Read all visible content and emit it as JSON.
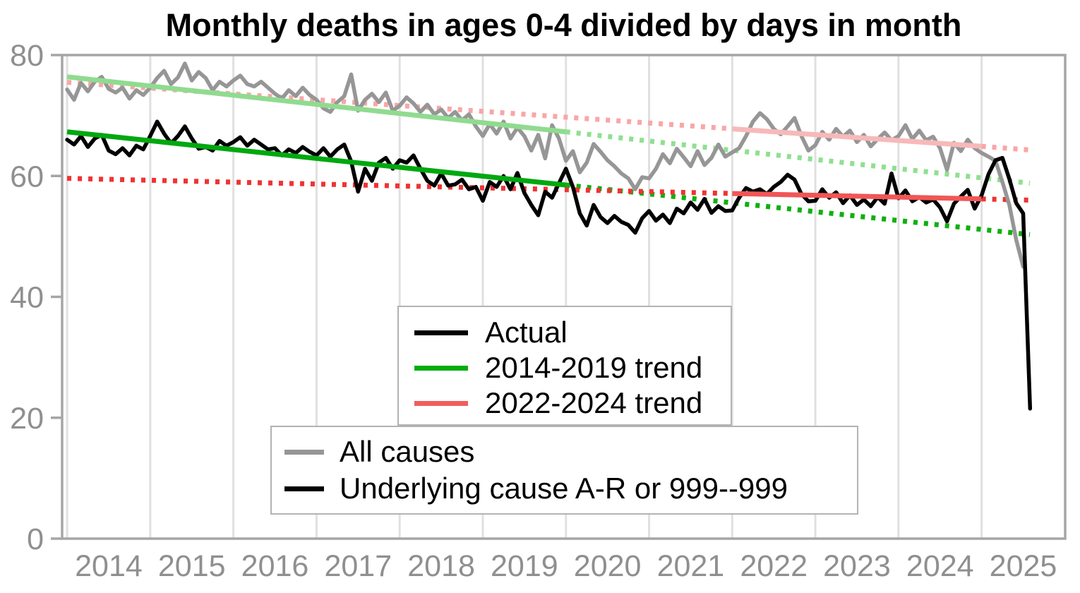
{
  "chart_data": {
    "type": "line",
    "title": "Monthly deaths in ages 0-4 divided by days in month",
    "x_axis": {
      "xlim": [
        2013.94,
        2026.005
      ],
      "ticks": [
        {
          "label": "2014",
          "year": 2014
        },
        {
          "label": "2015",
          "year": 2015
        },
        {
          "label": "2016",
          "year": 2016
        },
        {
          "label": "2017",
          "year": 2017
        },
        {
          "label": "2018",
          "year": 2018
        },
        {
          "label": "2019",
          "year": 2019
        },
        {
          "label": "2020",
          "year": 2020
        },
        {
          "label": "2021",
          "year": 2021
        },
        {
          "label": "2022",
          "year": 2022
        },
        {
          "label": "2023",
          "year": 2023
        },
        {
          "label": "2024",
          "year": 2024
        },
        {
          "label": "2025",
          "year": 2025
        }
      ],
      "gridlines": "vertical"
    },
    "y_axis": {
      "ylim": [
        0,
        80
      ],
      "ticks": [
        {
          "label": "0",
          "value": 0
        },
        {
          "label": "20",
          "value": 20
        },
        {
          "label": "40",
          "value": 40
        },
        {
          "label": "60",
          "value": 60
        },
        {
          "label": "80",
          "value": 80
        }
      ]
    },
    "style": {
      "axis_color": "#a6a6a6",
      "grid_color": "#e0e0e0",
      "tick_label_color": "#8f8f8f",
      "tick_label_size": 43
    },
    "series": [
      {
        "id": "trend-all-2014-2019-extrapolation",
        "name": "2014-2019 trend (All causes, extrapolated)",
        "width": 7,
        "segments": [
          {
            "style": "dotted",
            "color": "#8fe08f",
            "x1": 2020.0,
            "y1": 67.3,
            "x2": 2025.58,
            "y2": 58.8
          }
        ]
      },
      {
        "id": "trend-underlying-2014-2019-extrapolation",
        "name": "2014-2019 trend (Underlying, extrapolated)",
        "width": 7,
        "segments": [
          {
            "style": "dotted",
            "color": "#0eb00e",
            "x1": 2020.0,
            "y1": 58.5,
            "x2": 2025.58,
            "y2": 50.3
          }
        ]
      },
      {
        "id": "trend-all-2022-2024-extrapolation",
        "name": "2022-2024 trend (All causes, extrapolated)",
        "width": 7,
        "segments": [
          {
            "style": "dotted",
            "color": "#f9a6a6",
            "x1": 2014.0,
            "y1": 75.5,
            "x2": 2022.0,
            "y2": 67.8
          },
          {
            "style": "dotted",
            "color": "#f9a6a6",
            "x1": 2025.0,
            "y1": 64.9,
            "x2": 2025.58,
            "y2": 64.3
          }
        ]
      },
      {
        "id": "trend-underlying-2022-2024-extrapolation",
        "name": "2022-2024 trend (Underlying, extrapolated)",
        "width": 7,
        "segments": [
          {
            "style": "dotted",
            "color": "#ef3333",
            "x1": 2014.0,
            "y1": 59.6,
            "x2": 2022.0,
            "y2": 57.1
          },
          {
            "style": "dotted",
            "color": "#ef3333",
            "x1": 2025.0,
            "y1": 56.2,
            "x2": 2025.58,
            "y2": 56.0
          }
        ]
      },
      {
        "id": "all-causes",
        "name": "All causes",
        "color": "#969696",
        "width": 5.5,
        "start": "2014-01",
        "monthly": true,
        "values": [
          74.3,
          72.6,
          75.4,
          74.0,
          75.6,
          76.4,
          74.4,
          73.8,
          74.6,
          72.8,
          74.2,
          73.4,
          74.6,
          76.2,
          77.4,
          75.2,
          76.3,
          78.6,
          75.8,
          77.2,
          76.2,
          74.2,
          75.6,
          74.8,
          75.8,
          76.6,
          75.2,
          74.8,
          75.6,
          74.6,
          73.6,
          72.8,
          74.2,
          73.2,
          74.6,
          73.4,
          72.6,
          71.2,
          70.6,
          72.2,
          73.2,
          76.8,
          70.8,
          72.6,
          73.6,
          72.2,
          73.8,
          70.8,
          71.6,
          73.0,
          72.0,
          70.6,
          71.8,
          70.2,
          71.0,
          69.6,
          70.6,
          69.2,
          70.2,
          68.2,
          66.6,
          68.6,
          67.0,
          69.0,
          66.2,
          68.0,
          66.6,
          64.2,
          66.8,
          62.9,
          68.4,
          66.2,
          62.5,
          64.1,
          60.6,
          62.2,
          65.3,
          64.0,
          62.6,
          61.6,
          60.4,
          59.6,
          57.8,
          59.8,
          59.6,
          61.2,
          63.6,
          62.1,
          64.5,
          63.1,
          61.6,
          64.1,
          61.8,
          63.0,
          65.2,
          63.2,
          63.9,
          64.6,
          66.6,
          69.0,
          70.4,
          69.4,
          67.8,
          66.9,
          68.2,
          69.6,
          66.6,
          64.2,
          65.1,
          67.3,
          66.0,
          67.8,
          66.5,
          67.5,
          65.6,
          66.8,
          64.9,
          66.1,
          67.2,
          65.9,
          66.6,
          68.4,
          66.1,
          67.5,
          65.9,
          66.5,
          64.6,
          61.0,
          65.5,
          64.1,
          66.0,
          64.6,
          63.8,
          63.2,
          62.5,
          59.0,
          55.2,
          49.4,
          45.0
        ]
      },
      {
        "id": "trend-all-2014-2019",
        "name": "2014-2019 trend (All causes)",
        "width": 7,
        "segments": [
          {
            "style": "solid",
            "color": "#90db90",
            "x1": 2014.0,
            "y1": 76.4,
            "x2": 2020.0,
            "y2": 67.3
          }
        ]
      },
      {
        "id": "trend-all-2022-2024",
        "name": "2022-2024 trend (All causes)",
        "width": 7,
        "segments": [
          {
            "style": "solid",
            "color": "#f7b9b9",
            "x1": 2022.0,
            "y1": 67.8,
            "x2": 2025.0,
            "y2": 64.9
          }
        ]
      },
      {
        "id": "underlying",
        "name": "Underlying cause A-R or 999--999",
        "color": "#000000",
        "width": 5.5,
        "start": "2014-01",
        "monthly": true,
        "values": [
          66.0,
          65.2,
          66.6,
          64.8,
          66.2,
          66.8,
          64.2,
          63.6,
          64.6,
          63.4,
          65.0,
          64.4,
          66.6,
          69.0,
          67.0,
          65.4,
          66.6,
          68.2,
          66.2,
          64.5,
          64.8,
          64.2,
          65.8,
          65.0,
          65.6,
          66.4,
          65.0,
          66.0,
          65.2,
          64.4,
          64.6,
          63.4,
          64.4,
          63.8,
          64.8,
          64.0,
          63.4,
          64.6,
          63.2,
          64.4,
          65.2,
          62.4,
          57.4,
          61.2,
          59.2,
          62.2,
          63.0,
          61.2,
          62.6,
          62.2,
          63.4,
          61.2,
          59.2,
          58.4,
          60.4,
          58.4,
          58.6,
          59.4,
          57.8,
          58.2,
          55.9,
          59.0,
          58.2,
          60.0,
          57.8,
          60.5,
          57.2,
          55.2,
          53.5,
          57.4,
          56.4,
          58.8,
          61.2,
          58.2,
          53.8,
          51.8,
          55.2,
          53.2,
          52.2,
          53.4,
          52.4,
          51.9,
          50.6,
          53.0,
          54.2,
          52.6,
          53.6,
          52.2,
          54.6,
          53.8,
          55.6,
          54.4,
          56.2,
          53.9,
          55.0,
          54.2,
          54.3,
          56.4,
          58.0,
          57.4,
          57.8,
          57.0,
          58.2,
          59.0,
          60.2,
          59.4,
          57.0,
          55.8,
          55.9,
          57.8,
          56.4,
          57.3,
          55.5,
          56.8,
          55.2,
          56.1,
          55.0,
          56.5,
          55.4,
          60.4,
          56.3,
          57.6,
          55.8,
          56.5,
          55.6,
          56.1,
          54.8,
          52.5,
          55.4,
          56.6,
          57.7,
          54.6,
          56.8,
          60.3,
          62.6,
          63.0,
          59.5,
          55.5,
          53.8,
          21.5
        ]
      },
      {
        "id": "trend-underlying-2014-2019",
        "name": "2014-2019 trend",
        "width": 7,
        "segments": [
          {
            "style": "solid",
            "color": "#00a80f",
            "x1": 2014.0,
            "y1": 67.3,
            "x2": 2020.0,
            "y2": 58.5
          }
        ]
      },
      {
        "id": "trend-underlying-2022-2024",
        "name": "2022-2024 trend",
        "width": 7,
        "segments": [
          {
            "style": "solid",
            "color": "#f15656",
            "x1": 2022.0,
            "y1": 57.1,
            "x2": 2025.0,
            "y2": 56.2
          }
        ]
      }
    ]
  },
  "legends": {
    "trends": {
      "items": [
        {
          "label": "Actual",
          "color": "#000000"
        },
        {
          "label": "2014-2019 trend",
          "color": "#00ad0e"
        },
        {
          "label": "2022-2024 trend",
          "color": "#f15e5e"
        }
      ]
    },
    "causes": {
      "items": [
        {
          "label": "All causes",
          "color": "#969696"
        },
        {
          "label": "Underlying cause A-R or 999--999",
          "color": "#000000"
        }
      ]
    }
  }
}
